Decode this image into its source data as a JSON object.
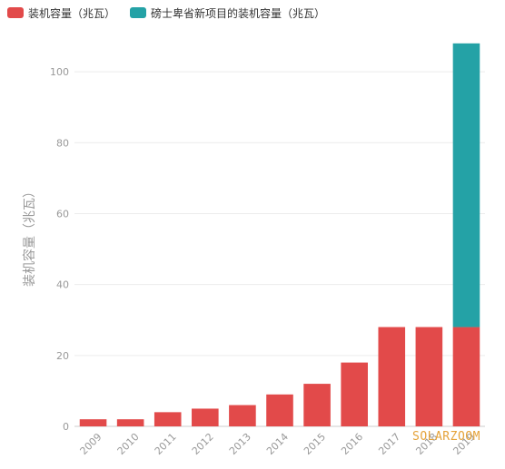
{
  "legend": [
    {
      "label": "装机容量（兆瓦）",
      "color": "#e24a4a"
    },
    {
      "label": "磅士卑省新项目的装机容量（兆瓦）",
      "color": "#24a2a6"
    }
  ],
  "watermark": "SOLARZOOM",
  "chart_data": {
    "type": "bar",
    "stacked": true,
    "categories": [
      "2009",
      "2010",
      "2011",
      "2012",
      "2013",
      "2014",
      "2015",
      "2016",
      "2017",
      "2018",
      "2019"
    ],
    "series": [
      {
        "name": "装机容量（兆瓦）",
        "color": "#e24a4a",
        "values": [
          2,
          2,
          4,
          5,
          6,
          9,
          12,
          18,
          28,
          28,
          28
        ]
      },
      {
        "name": "磅士卑省新项目的装机容量（兆瓦）",
        "color": "#24a2a6",
        "values": [
          0,
          0,
          0,
          0,
          0,
          0,
          0,
          0,
          0,
          0,
          80
        ]
      }
    ],
    "ylabel": "装机容量（兆瓦）",
    "xlabel": "",
    "ylim": [
      0,
      110
    ],
    "yticks": [
      0,
      20,
      40,
      60,
      80,
      100
    ],
    "grid": true,
    "legend_position": "top-left"
  }
}
